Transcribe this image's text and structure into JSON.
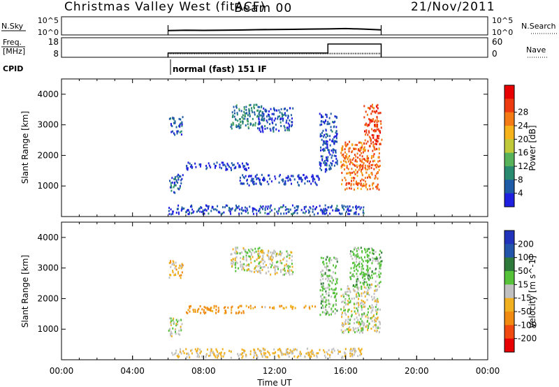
{
  "header": {
    "site": "Christmas Valley West (fitACF)",
    "beam": "Beam 00",
    "date": "21/Nov/2011"
  },
  "time_axis": {
    "label": "Time UT",
    "ticks": [
      "00:00",
      "04:00",
      "08:00",
      "12:00",
      "16:00",
      "20:00",
      "00:00"
    ]
  },
  "chart_data": [
    {
      "type": "line",
      "title": "",
      "ylabel_left": "N.Sky",
      "ylabel_right": "N.Search",
      "yticks_left": [
        "10^5",
        "10^0"
      ],
      "yticks_right": [
        "10^5",
        "10^0"
      ],
      "ylim": [
        0,
        5
      ],
      "x_hours": [
        6.0,
        7.0,
        8.0,
        9.0,
        10.0,
        11.0,
        12.0,
        13.0,
        14.0,
        15.0,
        16.0,
        17.0,
        18.0
      ],
      "series": [
        {
          "values": [
            1.2,
            1.3,
            1.25,
            1.3,
            1.35,
            1.45,
            1.5,
            1.55,
            1.6,
            1.65,
            1.75,
            1.6,
            1.4
          ]
        }
      ]
    },
    {
      "type": "line",
      "title": "",
      "ylabel_left": "Freq.\n[MHz]",
      "ylabel_right": "Nave",
      "yticks_left": [
        "18",
        "8"
      ],
      "yticks_right": [
        "60",
        "0"
      ],
      "ylim": [
        8,
        18
      ],
      "x_hours": [
        6.0,
        15.0,
        15.0,
        18.0
      ],
      "series": [
        {
          "values": [
            10.2,
            10.2,
            14.8,
            14.8
          ]
        },
        {
          "values": [
            9.9,
            9.9,
            9.9,
            9.9
          ]
        }
      ]
    },
    {
      "type": "table",
      "title": "",
      "ylabel": "CPID",
      "annotation": "normal (fast) 151 IF",
      "start_hour": 6.0
    },
    {
      "type": "heatmap",
      "title": "",
      "xlabel": "",
      "ylabel": "Slant Range [km]",
      "xlim": [
        0,
        24
      ],
      "ylim": [
        0,
        4500
      ],
      "yticks": [
        "1000",
        "2000",
        "3000",
        "4000"
      ],
      "colorbar_label": "Power [dB]",
      "colorbar_ticks": [
        "4",
        "8",
        "12",
        "16",
        "20",
        "24",
        "28"
      ],
      "colorbar_colors": [
        "#1f1fe0",
        "#1f5ca8",
        "#2a8a70",
        "#58b25a",
        "#bfc93a",
        "#f5b21a",
        "#f37a14",
        "#ee3a10",
        "#e80000"
      ],
      "regions": [
        {
          "t0": 6.0,
          "t1": 6.8,
          "r0": 800,
          "r1": 1400,
          "level": 5
        },
        {
          "t0": 6.0,
          "t1": 6.8,
          "r0": 2700,
          "r1": 3300,
          "level": 5
        },
        {
          "t0": 7.0,
          "t1": 10.5,
          "r0": 1550,
          "r1": 1800,
          "level": 3
        },
        {
          "t0": 9.5,
          "t1": 11.3,
          "r0": 2900,
          "r1": 3700,
          "level": 8
        },
        {
          "t0": 11.0,
          "t1": 13.0,
          "r0": 2800,
          "r1": 3600,
          "level": 4
        },
        {
          "t0": 10.0,
          "t1": 14.5,
          "r0": 1050,
          "r1": 1400,
          "level": 3
        },
        {
          "t0": 14.5,
          "t1": 15.5,
          "r0": 1500,
          "r1": 3400,
          "level": 4
        },
        {
          "t0": 15.7,
          "t1": 17.9,
          "r0": 900,
          "r1": 2500,
          "level": 24
        },
        {
          "t0": 17.0,
          "t1": 18.0,
          "r0": 2400,
          "r1": 3700,
          "level": 26
        },
        {
          "t0": 6.0,
          "t1": 17.0,
          "r0": 100,
          "r1": 400,
          "level": 4
        }
      ]
    },
    {
      "type": "heatmap",
      "title": "",
      "xlabel": "Time UT",
      "ylabel": "Slant Range [km]",
      "xlim": [
        0,
        24
      ],
      "ylim": [
        0,
        4500
      ],
      "yticks": [
        "1000",
        "2000",
        "3000",
        "4000"
      ],
      "colorbar_label": "Velocity [m s^-1]",
      "colorbar_ticks": [
        "200",
        "100",
        "50",
        "15",
        "-15",
        "-50",
        "-100",
        "-200"
      ],
      "colorbar_colors": [
        "#2233bb",
        "#2255aa",
        "#2e7a3a",
        "#55c23a",
        "#c0c0c0",
        "#f0b020",
        "#f08a10",
        "#f04a10",
        "#e80000"
      ],
      "regions": [
        {
          "t0": 6.0,
          "t1": 6.8,
          "r0": 800,
          "r1": 1400,
          "velocity": 0
        },
        {
          "t0": 6.0,
          "t1": 6.8,
          "r0": 2700,
          "r1": 3300,
          "velocity": -30
        },
        {
          "t0": 7.0,
          "t1": 10.5,
          "r0": 1550,
          "r1": 1800,
          "velocity": -70
        },
        {
          "t0": 9.5,
          "t1": 11.3,
          "r0": 2900,
          "r1": 3700,
          "velocity": 0
        },
        {
          "t0": 11.0,
          "t1": 13.0,
          "r0": 2800,
          "r1": 3600,
          "velocity": 0
        },
        {
          "t0": 10.0,
          "t1": 14.5,
          "r0": 1700,
          "r1": 1800,
          "velocity": -40
        },
        {
          "t0": 14.5,
          "t1": 15.5,
          "r0": 1500,
          "r1": 3400,
          "velocity": 25
        },
        {
          "t0": 15.7,
          "t1": 17.9,
          "r0": 900,
          "r1": 2500,
          "velocity": 0
        },
        {
          "t0": 16.2,
          "t1": 18.0,
          "r0": 2400,
          "r1": 3700,
          "velocity": 30
        },
        {
          "t0": 6.0,
          "t1": 17.0,
          "r0": 100,
          "r1": 400,
          "velocity": -20
        }
      ]
    }
  ]
}
